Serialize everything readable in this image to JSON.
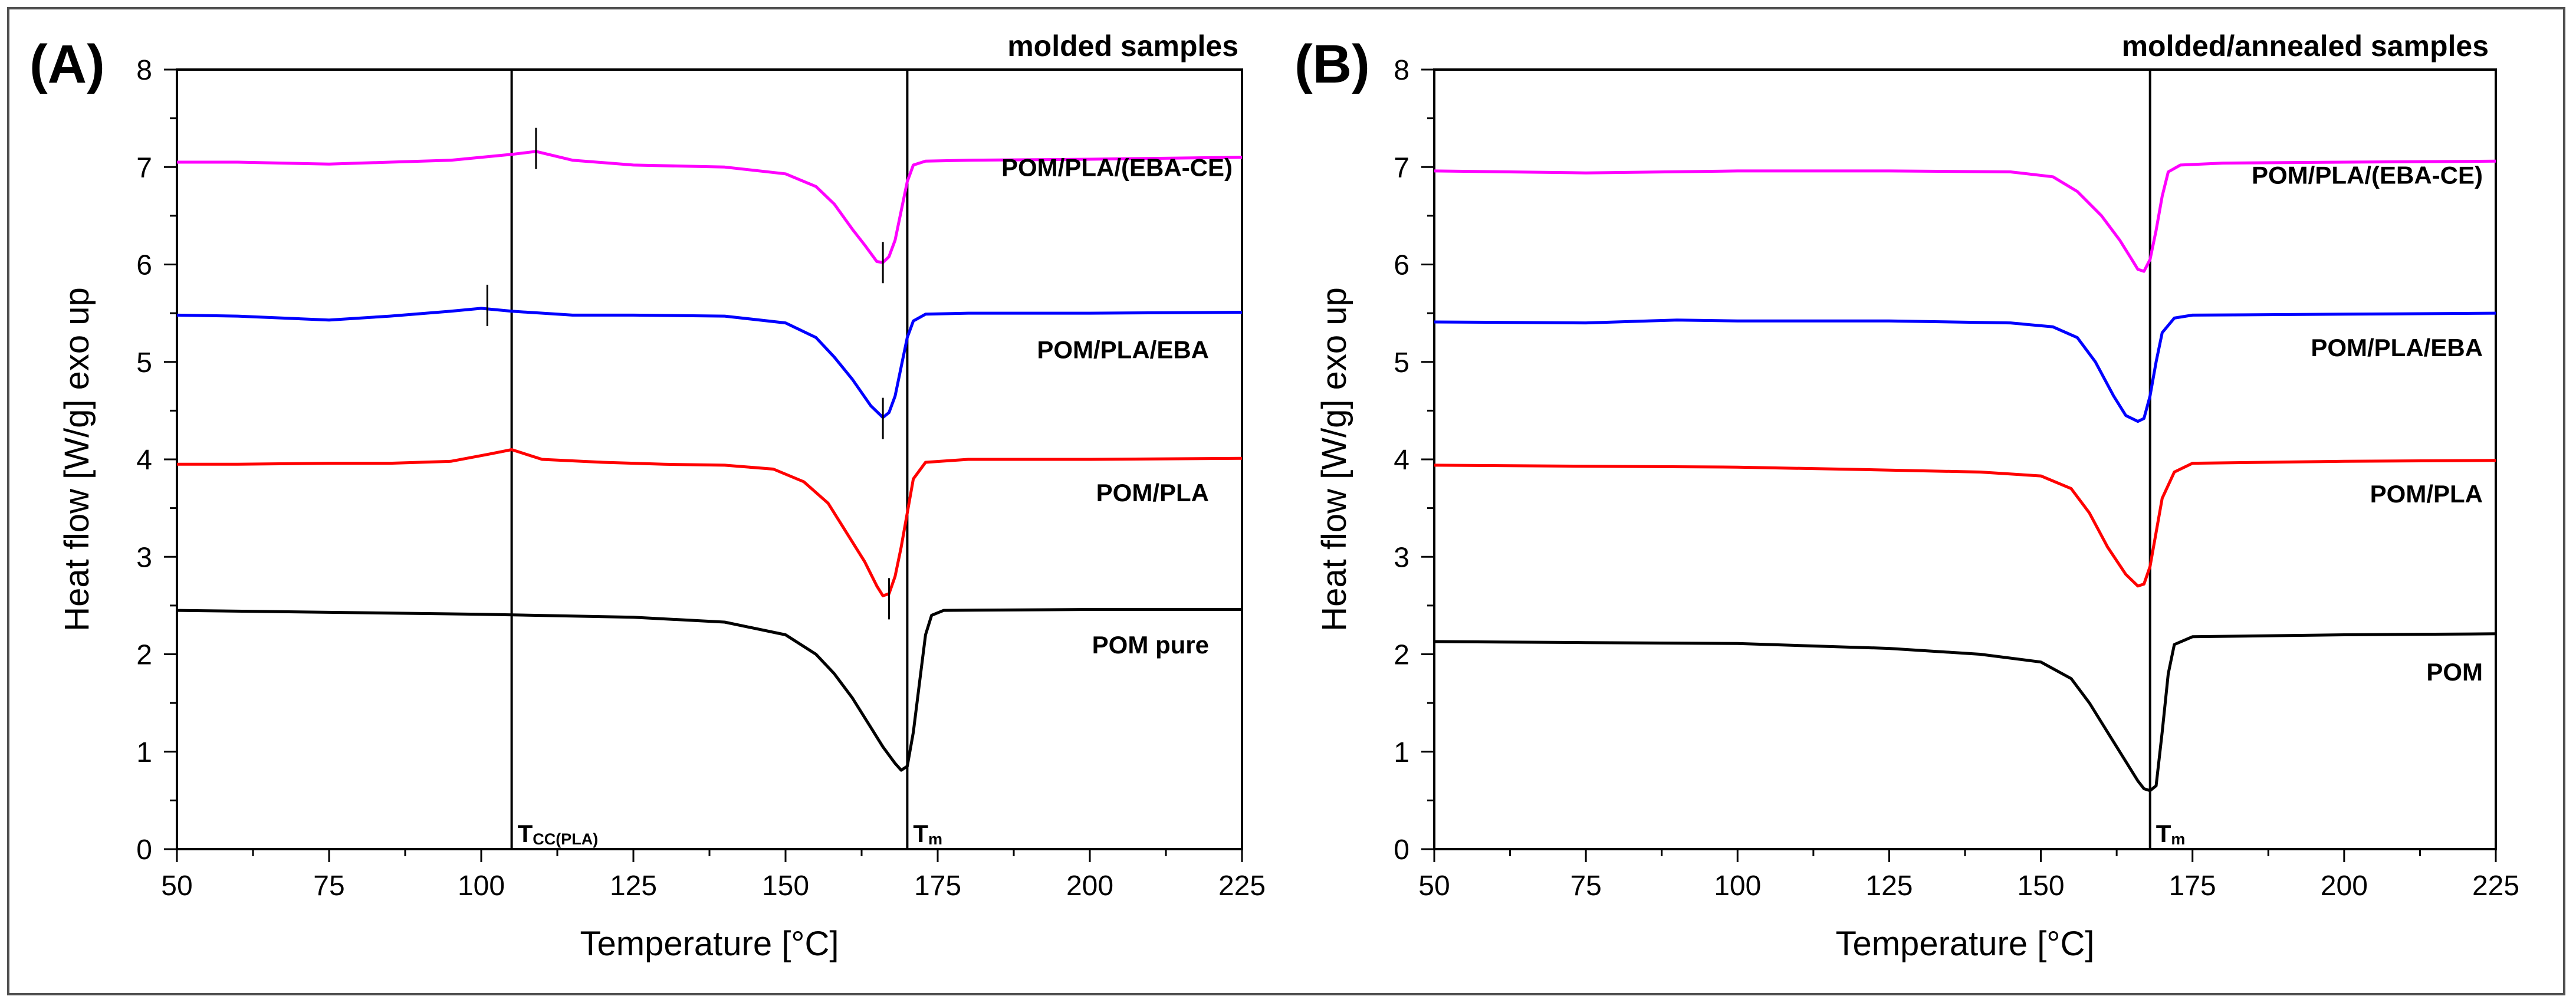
{
  "chart_data": [
    {
      "type": "line",
      "panel_label": "(A)",
      "title": "molded samples",
      "xlabel": "Temperature [°C]",
      "ylabel": "Heat flow [W/g] exo up",
      "xlim": [
        50,
        225
      ],
      "ylim": [
        0,
        8
      ],
      "xticks": [
        50,
        75,
        100,
        125,
        150,
        175,
        200,
        225
      ],
      "yticks": [
        0,
        1,
        2,
        3,
        4,
        5,
        6,
        7,
        8
      ],
      "vlines": [
        {
          "x": 105,
          "label_main": "T",
          "label_sub": "CC(PLA)"
        },
        {
          "x": 170,
          "label_main": "T",
          "label_sub": "m"
        }
      ],
      "series": [
        {
          "name": "POM/PLA/(EBA-CE)",
          "color": "#ff00ff",
          "points": [
            [
              50,
              7.05
            ],
            [
              60,
              7.05
            ],
            [
              75,
              7.03
            ],
            [
              85,
              7.05
            ],
            [
              95,
              7.07
            ],
            [
              105,
              7.13
            ],
            [
              109,
              7.16
            ],
            [
              115,
              7.07
            ],
            [
              125,
              7.02
            ],
            [
              140,
              7.0
            ],
            [
              150,
              6.93
            ],
            [
              155,
              6.8
            ],
            [
              158,
              6.62
            ],
            [
              161,
              6.36
            ],
            [
              163,
              6.2
            ],
            [
              165,
              6.03
            ],
            [
              166,
              6.02
            ],
            [
              167,
              6.08
            ],
            [
              168,
              6.25
            ],
            [
              169,
              6.55
            ],
            [
              170,
              6.85
            ],
            [
              171,
              7.02
            ],
            [
              173,
              7.06
            ],
            [
              180,
              7.07
            ],
            [
              200,
              7.08
            ],
            [
              225,
              7.1
            ]
          ],
          "tick": {
            "x": 166,
            "y": 6.05
          },
          "tick_top": {
            "x": 109,
            "y": 7.16
          }
        },
        {
          "name": "POM/PLA/EBA",
          "color": "#0000ff",
          "points": [
            [
              50,
              5.48
            ],
            [
              60,
              5.47
            ],
            [
              75,
              5.43
            ],
            [
              85,
              5.47
            ],
            [
              95,
              5.52
            ],
            [
              100,
              5.55
            ],
            [
              105,
              5.52
            ],
            [
              115,
              5.48
            ],
            [
              125,
              5.48
            ],
            [
              140,
              5.47
            ],
            [
              150,
              5.4
            ],
            [
              155,
              5.25
            ],
            [
              158,
              5.05
            ],
            [
              161,
              4.82
            ],
            [
              164,
              4.55
            ],
            [
              166,
              4.43
            ],
            [
              167,
              4.48
            ],
            [
              168,
              4.65
            ],
            [
              169,
              4.95
            ],
            [
              170,
              5.25
            ],
            [
              171,
              5.42
            ],
            [
              173,
              5.49
            ],
            [
              180,
              5.5
            ],
            [
              200,
              5.5
            ],
            [
              225,
              5.51
            ]
          ],
          "tick": {
            "x": 166,
            "y": 4.45
          },
          "tick_top": {
            "x": 101,
            "y": 5.55
          }
        },
        {
          "name": "POM/PLA",
          "color": "#ff0000",
          "points": [
            [
              50,
              3.95
            ],
            [
              60,
              3.95
            ],
            [
              75,
              3.96
            ],
            [
              85,
              3.96
            ],
            [
              95,
              3.98
            ],
            [
              101,
              4.05
            ],
            [
              105,
              4.1
            ],
            [
              110,
              4.0
            ],
            [
              120,
              3.97
            ],
            [
              130,
              3.95
            ],
            [
              140,
              3.94
            ],
            [
              148,
              3.9
            ],
            [
              153,
              3.77
            ],
            [
              157,
              3.55
            ],
            [
              160,
              3.25
            ],
            [
              163,
              2.95
            ],
            [
              165,
              2.7
            ],
            [
              166,
              2.6
            ],
            [
              167,
              2.62
            ],
            [
              168,
              2.8
            ],
            [
              169,
              3.1
            ],
            [
              170,
              3.45
            ],
            [
              171,
              3.8
            ],
            [
              173,
              3.97
            ],
            [
              180,
              4.0
            ],
            [
              200,
              4.0
            ],
            [
              225,
              4.01
            ]
          ],
          "tick": {
            "x": 167,
            "y": 2.6
          }
        },
        {
          "name": "POM pure",
          "color": "#000000",
          "points": [
            [
              50,
              2.45
            ],
            [
              75,
              2.43
            ],
            [
              100,
              2.41
            ],
            [
              125,
              2.38
            ],
            [
              140,
              2.33
            ],
            [
              150,
              2.2
            ],
            [
              155,
              2.0
            ],
            [
              158,
              1.8
            ],
            [
              161,
              1.55
            ],
            [
              164,
              1.25
            ],
            [
              166,
              1.05
            ],
            [
              168,
              0.88
            ],
            [
              169,
              0.81
            ],
            [
              170,
              0.85
            ],
            [
              171,
              1.2
            ],
            [
              172,
              1.7
            ],
            [
              173,
              2.2
            ],
            [
              174,
              2.4
            ],
            [
              176,
              2.45
            ],
            [
              200,
              2.46
            ],
            [
              225,
              2.46
            ]
          ]
        }
      ]
    },
    {
      "type": "line",
      "panel_label": "(B)",
      "title": "molded/annealed samples",
      "xlabel": "Temperature [°C]",
      "ylabel": "Heat flow [W/g] exo up",
      "xlim": [
        50,
        225
      ],
      "ylim": [
        0,
        8
      ],
      "xticks": [
        50,
        75,
        100,
        125,
        150,
        175,
        200,
        225
      ],
      "yticks": [
        0,
        1,
        2,
        3,
        4,
        5,
        6,
        7,
        8
      ],
      "vlines": [
        {
          "x": 168,
          "label_main": "T",
          "label_sub": "m"
        }
      ],
      "series": [
        {
          "name": "POM/PLA/(EBA-CE)",
          "color": "#ff00ff",
          "points": [
            [
              50,
              6.96
            ],
            [
              75,
              6.94
            ],
            [
              100,
              6.96
            ],
            [
              125,
              6.96
            ],
            [
              145,
              6.95
            ],
            [
              152,
              6.9
            ],
            [
              156,
              6.75
            ],
            [
              160,
              6.5
            ],
            [
              163,
              6.25
            ],
            [
              165,
              6.05
            ],
            [
              166,
              5.95
            ],
            [
              167,
              5.93
            ],
            [
              168,
              6.05
            ],
            [
              169,
              6.35
            ],
            [
              170,
              6.7
            ],
            [
              171,
              6.95
            ],
            [
              173,
              7.02
            ],
            [
              180,
              7.04
            ],
            [
              200,
              7.05
            ],
            [
              225,
              7.06
            ]
          ]
        },
        {
          "name": "POM/PLA/EBA",
          "color": "#0000ff",
          "points": [
            [
              50,
              5.41
            ],
            [
              75,
              5.4
            ],
            [
              90,
              5.43
            ],
            [
              100,
              5.42
            ],
            [
              125,
              5.42
            ],
            [
              145,
              5.4
            ],
            [
              152,
              5.36
            ],
            [
              156,
              5.25
            ],
            [
              159,
              5.0
            ],
            [
              162,
              4.65
            ],
            [
              164,
              4.45
            ],
            [
              166,
              4.39
            ],
            [
              167,
              4.42
            ],
            [
              168,
              4.65
            ],
            [
              169,
              5.0
            ],
            [
              170,
              5.3
            ],
            [
              172,
              5.45
            ],
            [
              175,
              5.48
            ],
            [
              200,
              5.49
            ],
            [
              225,
              5.5
            ]
          ]
        },
        {
          "name": "POM/PLA",
          "color": "#ff0000",
          "points": [
            [
              50,
              3.94
            ],
            [
              75,
              3.93
            ],
            [
              100,
              3.92
            ],
            [
              125,
              3.89
            ],
            [
              140,
              3.87
            ],
            [
              150,
              3.83
            ],
            [
              155,
              3.7
            ],
            [
              158,
              3.45
            ],
            [
              161,
              3.1
            ],
            [
              164,
              2.82
            ],
            [
              166,
              2.7
            ],
            [
              167,
              2.72
            ],
            [
              168,
              2.9
            ],
            [
              169,
              3.25
            ],
            [
              170,
              3.6
            ],
            [
              172,
              3.87
            ],
            [
              175,
              3.96
            ],
            [
              200,
              3.98
            ],
            [
              225,
              3.99
            ]
          ]
        },
        {
          "name": "POM",
          "color": "#000000",
          "points": [
            [
              50,
              2.13
            ],
            [
              75,
              2.12
            ],
            [
              100,
              2.11
            ],
            [
              125,
              2.06
            ],
            [
              140,
              2.0
            ],
            [
              150,
              1.92
            ],
            [
              155,
              1.75
            ],
            [
              158,
              1.5
            ],
            [
              161,
              1.2
            ],
            [
              164,
              0.9
            ],
            [
              166,
              0.7
            ],
            [
              167,
              0.62
            ],
            [
              168,
              0.6
            ],
            [
              169,
              0.65
            ],
            [
              170,
              1.2
            ],
            [
              171,
              1.8
            ],
            [
              172,
              2.1
            ],
            [
              175,
              2.18
            ],
            [
              200,
              2.2
            ],
            [
              225,
              2.21
            ]
          ]
        }
      ]
    }
  ]
}
